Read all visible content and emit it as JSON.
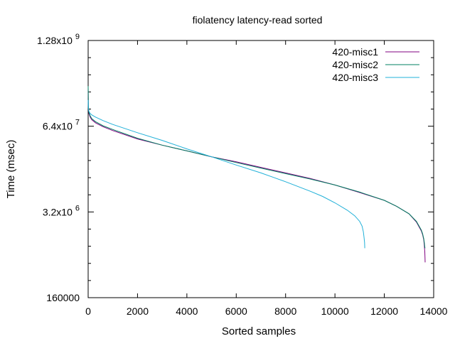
{
  "chart_data": {
    "type": "line",
    "title": "fiolatency latency-read sorted",
    "xlabel": "Sorted samples",
    "ylabel": "Time (msec)",
    "xlim": [
      0,
      14000
    ],
    "ylim": [
      160000,
      1280000000
    ],
    "yscale": "log",
    "grid": false,
    "legend_position": "top-right",
    "x_ticks": [
      0,
      2000,
      4000,
      6000,
      8000,
      10000,
      12000,
      14000
    ],
    "x_tick_labels": [
      "0",
      "2000",
      "4000",
      "6000",
      "8000",
      "10000",
      "12000",
      "14000"
    ],
    "y_ticks": [
      160000,
      3200000,
      64000000,
      1280000000
    ],
    "y_tick_labels": [
      {
        "base": "160000",
        "exp": ""
      },
      {
        "base": "3.2x10",
        "exp": "6"
      },
      {
        "base": "6.4x10",
        "exp": "7"
      },
      {
        "base": "1.28x10",
        "exp": "9"
      }
    ],
    "series": [
      {
        "name": "420-misc1",
        "color": "#800080",
        "x": [
          0,
          10,
          30,
          80,
          150,
          300,
          600,
          1000,
          2000,
          3000,
          4000,
          5000,
          6000,
          7000,
          8000,
          9000,
          10000,
          11000,
          12000,
          12500,
          13000,
          13300,
          13500,
          13550,
          13600,
          13620,
          13640,
          13650,
          13655
        ],
        "y": [
          250000000,
          130000000,
          100000000,
          88000000,
          80000000,
          72000000,
          63000000,
          55000000,
          41000000,
          33000000,
          27000000,
          22000000,
          18500000,
          15200000,
          12500000,
          10300000,
          8200000,
          6300000,
          4800000,
          3900000,
          3000000,
          2250000,
          1650000,
          1450000,
          1200000,
          1000000,
          800000,
          650000,
          550000
        ]
      },
      {
        "name": "420-misc2",
        "color": "#008060",
        "x": [
          0,
          10,
          30,
          80,
          150,
          300,
          600,
          1000,
          2000,
          3000,
          4000,
          5000,
          6000,
          7000,
          8000,
          9000,
          10000,
          11000,
          12000,
          12500,
          13000,
          13300,
          13500,
          13550,
          13600,
          13620,
          13640,
          13650
        ],
        "y": [
          260000000,
          135000000,
          105000000,
          92000000,
          83000000,
          75000000,
          65000000,
          57000000,
          42000000,
          33000000,
          27000000,
          22000000,
          18000000,
          14800000,
          12200000,
          10100000,
          8200000,
          6400000,
          4800000,
          3900000,
          3000000,
          2300000,
          1700000,
          1500000,
          1250000,
          1100000,
          950000,
          900000
        ]
      },
      {
        "name": "420-misc3",
        "color": "#20B0D8",
        "x": [
          0,
          10,
          30,
          80,
          150,
          300,
          600,
          1000,
          2000,
          3000,
          4000,
          5000,
          6000,
          7000,
          8000,
          9000,
          9500,
          10000,
          10500,
          10800,
          11000,
          11100,
          11150,
          11180,
          11200,
          11210
        ],
        "y": [
          160000000,
          120000000,
          108000000,
          100000000,
          95000000,
          88000000,
          78000000,
          68000000,
          51000000,
          39000000,
          29000000,
          22000000,
          16500000,
          12500000,
          9200000,
          6600000,
          5500000,
          4400000,
          3400000,
          2800000,
          2300000,
          1950000,
          1600000,
          1300000,
          1100000,
          900000
        ]
      }
    ]
  }
}
